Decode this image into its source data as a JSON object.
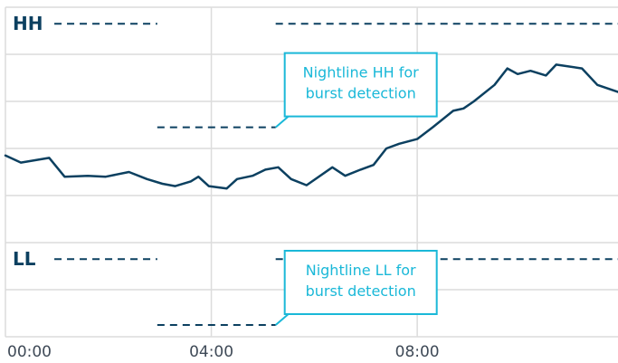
{
  "chart_data": {
    "type": "line",
    "title": "",
    "xlabel": "",
    "ylabel": "",
    "x_ticks": [
      "00:00",
      "04:00",
      "08:00"
    ],
    "x_tick_hours": [
      0,
      4,
      8
    ],
    "xlim": [
      0,
      11.9
    ],
    "ylim": [
      0,
      7
    ],
    "grid": true,
    "colors": {
      "line": "#0c4060",
      "grid": "#dcdcdc",
      "callout": "#1ab8d8",
      "threshold": "#0c4060"
    },
    "series": [
      {
        "name": "",
        "x": [
          0,
          0.3,
          0.85,
          1.15,
          1.6,
          1.95,
          2.4,
          2.75,
          3.05,
          3.3,
          3.6,
          3.75,
          3.95,
          4.3,
          4.5,
          4.8,
          5.05,
          5.3,
          5.55,
          5.85,
          6.35,
          6.6,
          6.9,
          7.15,
          7.4,
          7.65,
          8.0,
          8.3,
          8.7,
          8.9,
          9.1,
          9.5,
          9.75,
          9.95,
          10.2,
          10.5,
          10.7,
          11.2,
          11.5,
          11.9
        ],
        "y": [
          3.85,
          3.7,
          3.8,
          3.4,
          3.42,
          3.4,
          3.5,
          3.35,
          3.25,
          3.2,
          3.3,
          3.4,
          3.2,
          3.15,
          3.35,
          3.42,
          3.55,
          3.6,
          3.35,
          3.22,
          3.6,
          3.42,
          3.55,
          3.65,
          4.0,
          4.1,
          4.2,
          4.45,
          4.8,
          4.85,
          5.0,
          5.35,
          5.7,
          5.58,
          5.65,
          5.55,
          5.78,
          5.7,
          5.35,
          5.2
        ]
      }
    ],
    "thresholds": [
      {
        "label": "HH",
        "segments": [
          {
            "y": 6.65,
            "x": [
              0.95,
              2.95
            ]
          },
          {
            "y": 6.65,
            "x": [
              5.25,
              11.9
            ]
          },
          {
            "y": 4.45,
            "x": [
              2.95,
              5.25
            ]
          }
        ]
      },
      {
        "label": "LL",
        "segments": [
          {
            "y": 1.65,
            "x": [
              0.95,
              2.95
            ]
          },
          {
            "y": 1.65,
            "x": [
              5.25,
              11.9
            ]
          },
          {
            "y": 0.25,
            "x": [
              2.95,
              5.25
            ]
          }
        ]
      }
    ],
    "annotations": [
      {
        "lines": [
          "Nightline HH for",
          "burst detection"
        ],
        "anchor_x": 5.25,
        "anchor_y": 4.45
      },
      {
        "lines": [
          "Nightline LL for",
          "burst detection"
        ],
        "anchor_x": 5.25,
        "anchor_y": 0.25
      }
    ]
  }
}
